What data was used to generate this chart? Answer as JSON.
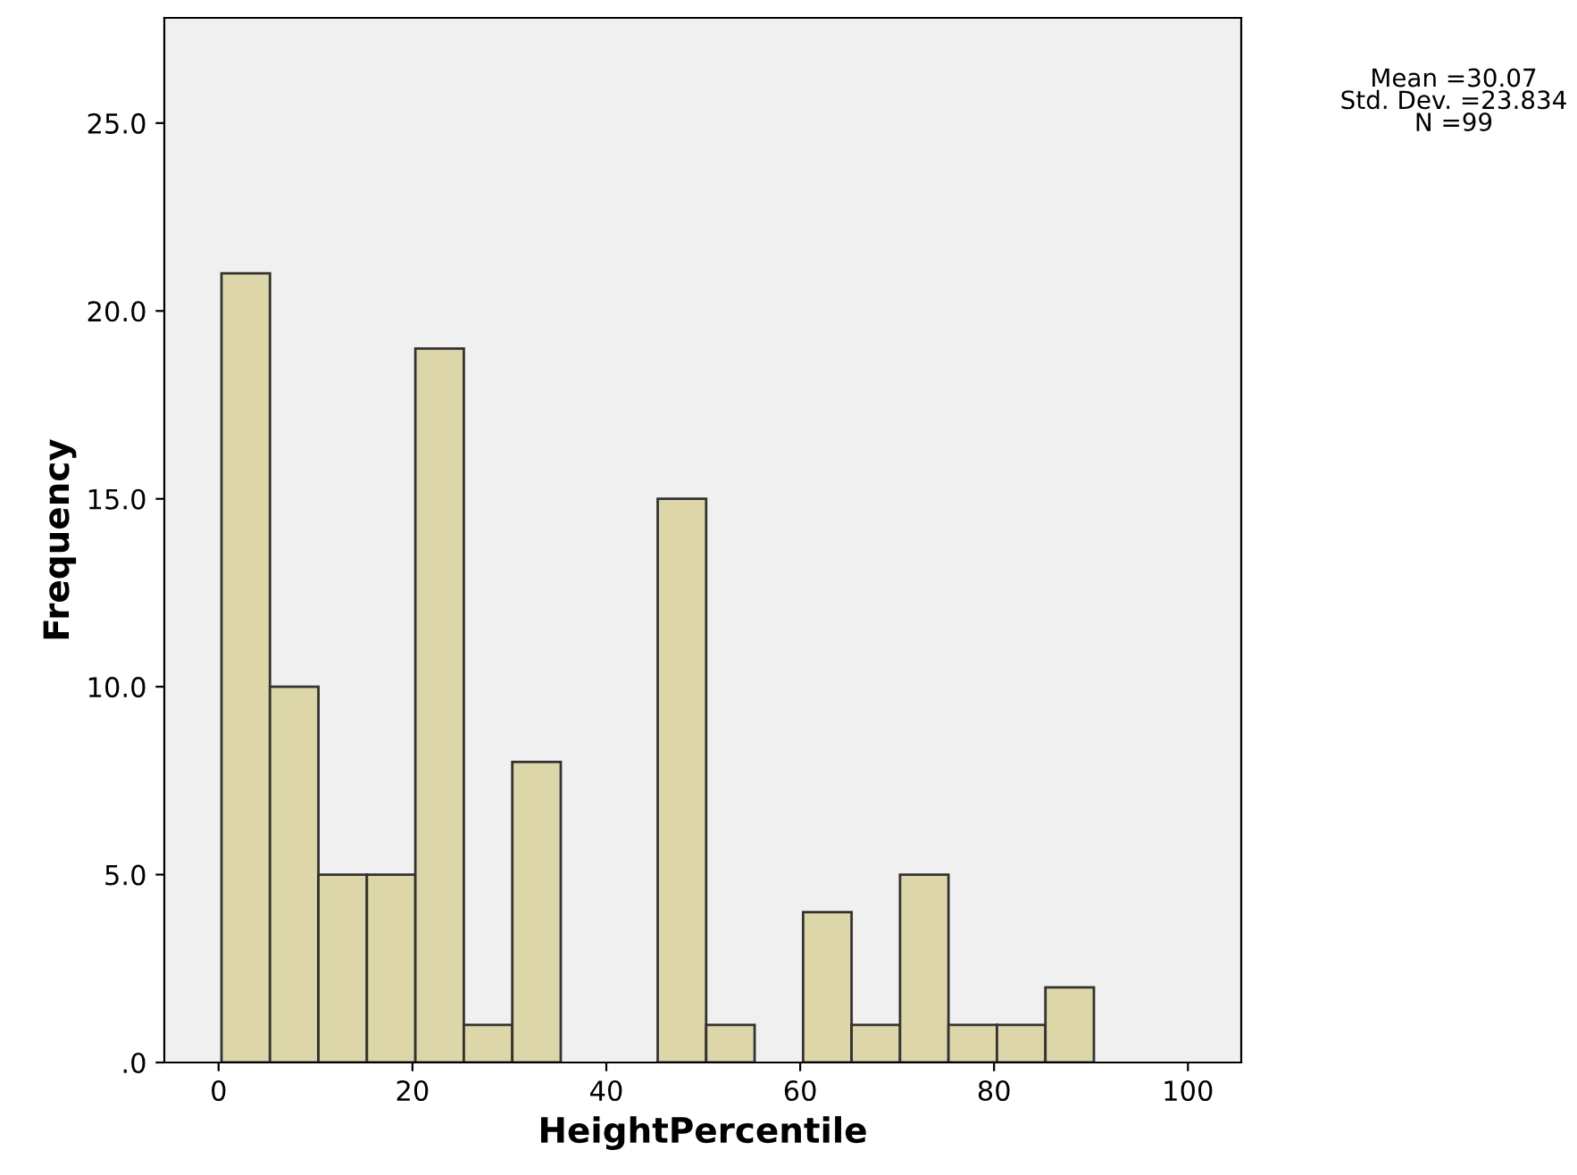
{
  "chart_data": {
    "type": "histogram",
    "xlabel": "HeightPercentile",
    "ylabel": "Frequency",
    "bins": [
      0.3,
      5.3,
      10.3,
      15.3,
      20.3,
      25.3,
      30.3,
      35.3,
      40.3,
      45.3,
      50.3,
      55.3,
      60.3,
      65.3,
      70.3,
      75.3,
      80.3,
      85.3,
      90.3
    ],
    "values": [
      21,
      10,
      5,
      5,
      19,
      1,
      8,
      0,
      0,
      15,
      1,
      0,
      4,
      1,
      5,
      1,
      1,
      2
    ],
    "color": "#ddd6a8",
    "xlim": [
      -5.6,
      105.5
    ],
    "xticks": [
      0,
      20,
      40,
      60,
      80,
      100
    ],
    "ylim": [
      0,
      27.8
    ],
    "yticks": [
      {
        "value": 0,
        "label": ".0"
      },
      {
        "value": 5,
        "label": "5.0"
      },
      {
        "value": 10,
        "label": "10.0"
      },
      {
        "value": 15,
        "label": "15.0"
      },
      {
        "value": 20,
        "label": "20.0"
      },
      {
        "value": 25,
        "label": "25.0"
      }
    ],
    "grid": false,
    "annotations": [
      "Mean =30.07\nStd. Dev. =23.834\nN =99"
    ]
  }
}
